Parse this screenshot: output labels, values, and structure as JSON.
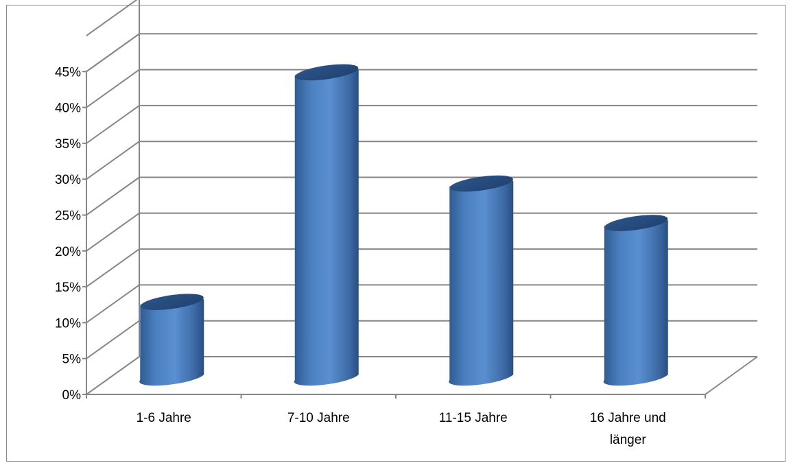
{
  "chart_data": {
    "type": "bar",
    "style": "3d-cylinder",
    "categories": [
      "1-6 Jahre",
      "7-10 Jahre",
      "11-15 Jahre",
      "16 Jahre und länger"
    ],
    "category_lines": [
      [
        "1-6 Jahre"
      ],
      [
        "7-10 Jahre"
      ],
      [
        "11-15 Jahre"
      ],
      [
        "16 Jahre und",
        "länger"
      ]
    ],
    "values": [
      10.5,
      42.5,
      27,
      21.5
    ],
    "ylim": [
      0,
      45
    ],
    "yticks": [
      "0%",
      "5%",
      "10%",
      "15%",
      "20%",
      "25%",
      "30%",
      "35%",
      "40%",
      "45%"
    ],
    "grid": true,
    "legend": "none",
    "bar_color": "#4f81bd",
    "grid_color": "#868686"
  }
}
